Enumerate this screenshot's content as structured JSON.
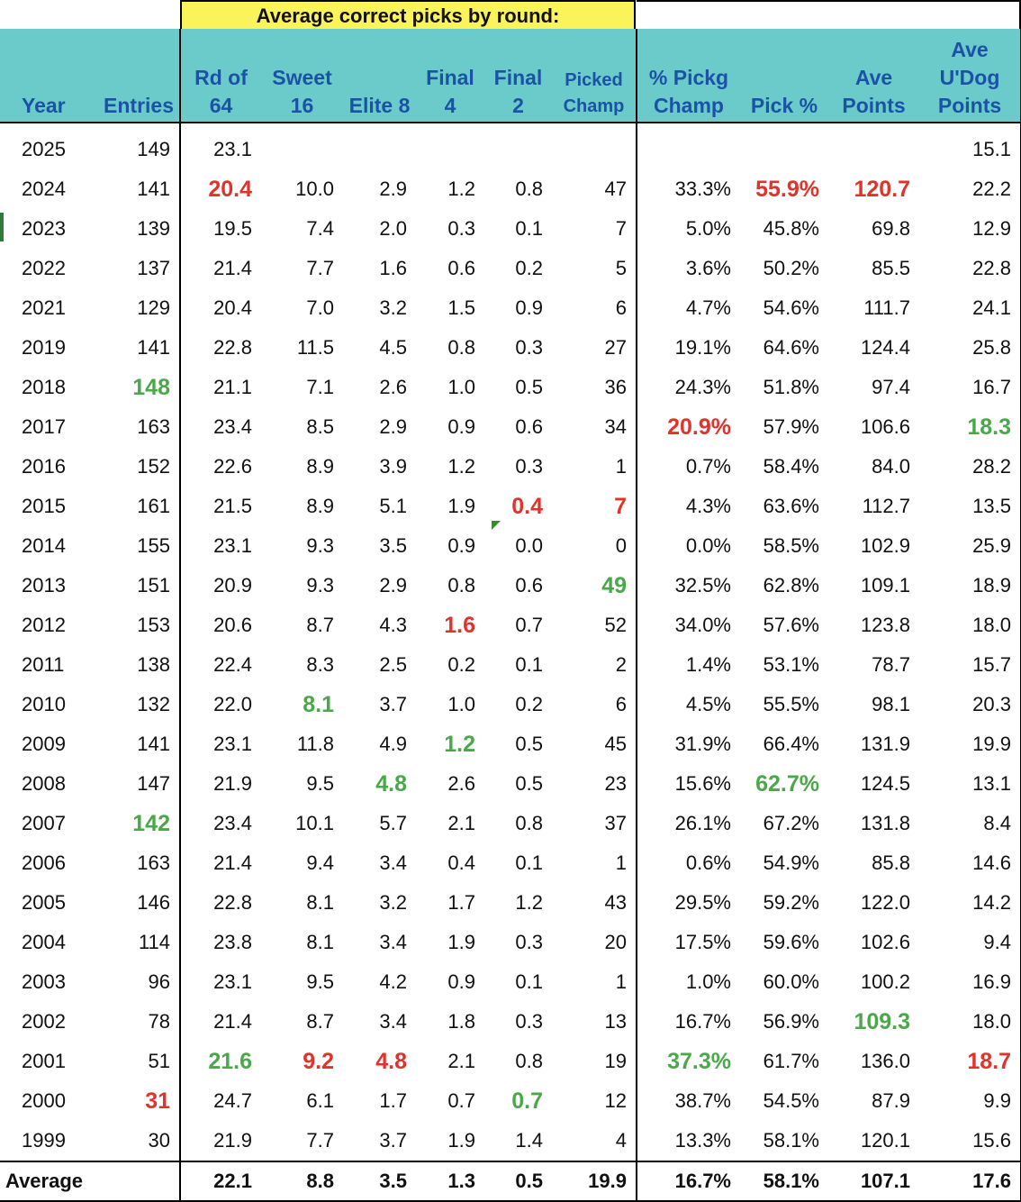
{
  "banner": "Average correct picks by round:",
  "headers": [
    [
      "",
      "Year"
    ],
    [
      "",
      "Entries"
    ],
    [
      "Rd of",
      "64"
    ],
    [
      "Sweet",
      "16"
    ],
    [
      "",
      "Elite 8"
    ],
    [
      "Final",
      "4"
    ],
    [
      "Final",
      "2"
    ],
    [
      "Picked",
      "Champ"
    ],
    [
      "% Pickg",
      "Champ"
    ],
    [
      "",
      "Pick %"
    ],
    [
      "Ave",
      "Points"
    ],
    [
      "Ave",
      "U'Dog",
      "Points"
    ]
  ],
  "rows": [
    [
      "2025",
      "149",
      "23.1",
      "",
      "",
      "",
      "",
      "",
      "",
      "",
      "",
      "15.1"
    ],
    [
      "2024",
      "141",
      "20.4",
      "10.0",
      "2.9",
      "1.2",
      "0.8",
      "47",
      "33.3%",
      "55.9%",
      "120.7",
      "22.2"
    ],
    [
      "2023",
      "139",
      "19.5",
      "7.4",
      "2.0",
      "0.3",
      "0.1",
      "7",
      "5.0%",
      "45.8%",
      "69.8",
      "12.9"
    ],
    [
      "2022",
      "137",
      "21.4",
      "7.7",
      "1.6",
      "0.6",
      "0.2",
      "5",
      "3.6%",
      "50.2%",
      "85.5",
      "22.8"
    ],
    [
      "2021",
      "129",
      "20.4",
      "7.0",
      "3.2",
      "1.5",
      "0.9",
      "6",
      "4.7%",
      "54.6%",
      "111.7",
      "24.1"
    ],
    [
      "2019",
      "141",
      "22.8",
      "11.5",
      "4.5",
      "0.8",
      "0.3",
      "27",
      "19.1%",
      "64.6%",
      "124.4",
      "25.8"
    ],
    [
      "2018",
      "148",
      "21.1",
      "7.1",
      "2.6",
      "1.0",
      "0.5",
      "36",
      "24.3%",
      "51.8%",
      "97.4",
      "16.7"
    ],
    [
      "2017",
      "163",
      "23.4",
      "8.5",
      "2.9",
      "0.9",
      "0.6",
      "34",
      "20.9%",
      "57.9%",
      "106.6",
      "18.3"
    ],
    [
      "2016",
      "152",
      "22.6",
      "8.9",
      "3.9",
      "1.2",
      "0.3",
      "1",
      "0.7%",
      "58.4%",
      "84.0",
      "28.2"
    ],
    [
      "2015",
      "161",
      "21.5",
      "8.9",
      "5.1",
      "1.9",
      "0.4",
      "7",
      "4.3%",
      "63.6%",
      "112.7",
      "13.5"
    ],
    [
      "2014",
      "155",
      "23.1",
      "9.3",
      "3.5",
      "0.9",
      "0.0",
      "0",
      "0.0%",
      "58.5%",
      "102.9",
      "25.9"
    ],
    [
      "2013",
      "151",
      "20.9",
      "9.3",
      "2.9",
      "0.8",
      "0.6",
      "49",
      "32.5%",
      "62.8%",
      "109.1",
      "18.9"
    ],
    [
      "2012",
      "153",
      "20.6",
      "8.7",
      "4.3",
      "1.6",
      "0.7",
      "52",
      "34.0%",
      "57.6%",
      "123.8",
      "18.0"
    ],
    [
      "2011",
      "138",
      "22.4",
      "8.3",
      "2.5",
      "0.2",
      "0.1",
      "2",
      "1.4%",
      "53.1%",
      "78.7",
      "15.7"
    ],
    [
      "2010",
      "132",
      "22.0",
      "8.1",
      "3.7",
      "1.0",
      "0.2",
      "6",
      "4.5%",
      "55.5%",
      "98.1",
      "20.3"
    ],
    [
      "2009",
      "141",
      "23.1",
      "11.8",
      "4.9",
      "1.2",
      "0.5",
      "45",
      "31.9%",
      "66.4%",
      "131.9",
      "19.9"
    ],
    [
      "2008",
      "147",
      "21.9",
      "9.5",
      "4.8",
      "2.6",
      "0.5",
      "23",
      "15.6%",
      "62.7%",
      "124.5",
      "13.1"
    ],
    [
      "2007",
      "142",
      "23.4",
      "10.1",
      "5.7",
      "2.1",
      "0.8",
      "37",
      "26.1%",
      "67.2%",
      "131.8",
      "8.4"
    ],
    [
      "2006",
      "163",
      "21.4",
      "9.4",
      "3.4",
      "0.4",
      "0.1",
      "1",
      "0.6%",
      "54.9%",
      "85.8",
      "14.6"
    ],
    [
      "2005",
      "146",
      "22.8",
      "8.1",
      "3.2",
      "1.7",
      "1.2",
      "43",
      "29.5%",
      "59.2%",
      "122.0",
      "14.2"
    ],
    [
      "2004",
      "114",
      "23.8",
      "8.1",
      "3.4",
      "1.9",
      "0.3",
      "20",
      "17.5%",
      "59.6%",
      "102.6",
      "9.4"
    ],
    [
      "2003",
      "96",
      "23.1",
      "9.5",
      "4.2",
      "0.9",
      "0.1",
      "1",
      "1.0%",
      "60.0%",
      "100.2",
      "16.9"
    ],
    [
      "2002",
      "78",
      "21.4",
      "8.7",
      "3.4",
      "1.8",
      "0.3",
      "13",
      "16.7%",
      "56.9%",
      "109.3",
      "18.0"
    ],
    [
      "2001",
      "51",
      "21.6",
      "9.2",
      "4.8",
      "2.1",
      "0.8",
      "19",
      "37.3%",
      "61.7%",
      "136.0",
      "18.7"
    ],
    [
      "2000",
      "31",
      "24.7",
      "6.1",
      "1.7",
      "0.7",
      "0.7",
      "12",
      "38.7%",
      "54.5%",
      "87.9",
      "9.9"
    ],
    [
      "1999",
      "30",
      "21.9",
      "7.7",
      "3.7",
      "1.9",
      "1.4",
      "4",
      "13.3%",
      "58.1%",
      "120.1",
      "15.6"
    ]
  ],
  "average_row": [
    "Average",
    "",
    "22.1",
    "8.8",
    "3.5",
    "1.3",
    "0.5",
    "19.9",
    "16.7%",
    "58.1%",
    "107.1",
    "17.6"
  ],
  "highlights": {
    "red": [
      [
        2,
        2
      ],
      [
        2,
        9
      ],
      [
        2,
        10
      ],
      [
        8,
        8
      ],
      [
        10,
        6
      ],
      [
        10,
        7
      ],
      [
        13,
        5
      ],
      [
        24,
        3
      ],
      [
        24,
        4
      ],
      [
        24,
        11
      ],
      [
        25,
        1
      ]
    ],
    "green": [
      [
        7,
        1
      ],
      [
        8,
        11
      ],
      [
        12,
        7
      ],
      [
        15,
        3
      ],
      [
        16,
        5
      ],
      [
        17,
        4
      ],
      [
        17,
        9
      ],
      [
        18,
        1
      ],
      [
        23,
        10
      ],
      [
        24,
        2
      ],
      [
        24,
        8
      ],
      [
        25,
        6
      ]
    ]
  },
  "colors": {
    "header_bg": "#6bcbca",
    "header_text": "#1b52a6",
    "banner_bg": "#fbf35a",
    "low_value": "#e0332b",
    "high_value": "#4aa84a"
  }
}
